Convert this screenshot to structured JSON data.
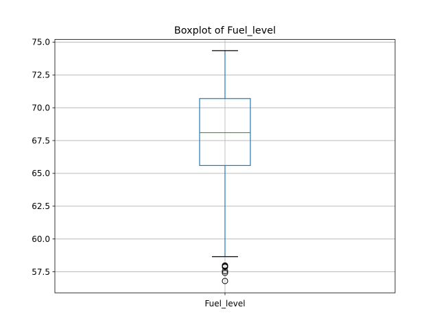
{
  "chart_data": {
    "type": "boxplot",
    "title": "Boxplot of Fuel_level",
    "xlabel": "",
    "ylabel": "",
    "categories": [
      "Fuel_level"
    ],
    "ylim": [
      55.9,
      75.2
    ],
    "yticks": [
      57.5,
      60.0,
      62.5,
      65.0,
      67.5,
      70.0,
      72.5,
      75.0
    ],
    "ytick_labels": [
      "57.5",
      "60.0",
      "62.5",
      "65.0",
      "67.5",
      "70.0",
      "72.5",
      "75.0"
    ],
    "grid": true,
    "series": [
      {
        "whisker_low": 58.65,
        "q1": 65.6,
        "median": 68.1,
        "q3": 70.7,
        "whisker_high": 74.35,
        "outliers": [
          57.98,
          57.92,
          57.87,
          57.55,
          57.42,
          56.8
        ]
      }
    ],
    "colors": {
      "box": "#1f77b4",
      "median": "#2ca02c",
      "caps": "#000000",
      "grid": "#b0b0b0",
      "axes": "#000000"
    }
  }
}
